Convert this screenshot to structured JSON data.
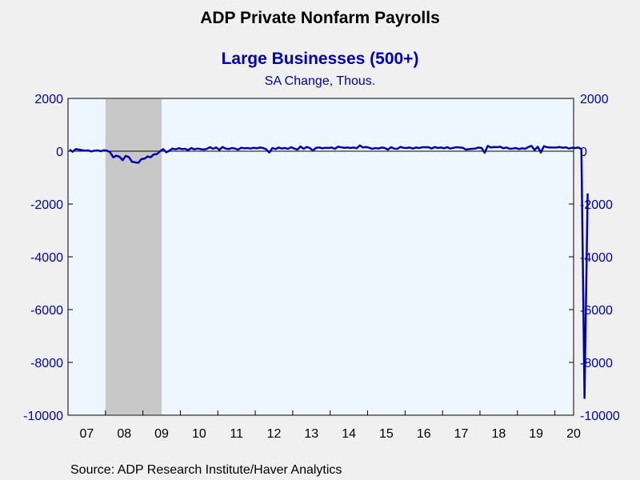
{
  "chart_data": {
    "type": "line",
    "title": "ADP Private Nonfarm Payrolls",
    "subtitle": "Large Businesses (500+)",
    "units": "SA Change, Thous.",
    "source": "Source:  ADP Research Institute/Haver Analytics",
    "x_ticks": [
      "07",
      "08",
      "09",
      "10",
      "11",
      "12",
      "13",
      "14",
      "15",
      "16",
      "17",
      "18",
      "19",
      "20"
    ],
    "ylim": [
      -10000,
      2000
    ],
    "y_ticks": [
      "2000",
      "0",
      "-2000",
      "-4000",
      "-6000",
      "-8000",
      "-10000"
    ],
    "grid": false,
    "recession": {
      "start": "2008-01",
      "end": "2009-06"
    },
    "colors": {
      "line": "#0000b4",
      "plot_bg": "#eef6ff",
      "page_bg": "#f0f0f0",
      "recession": "#c8c8c8",
      "text_accent": "#0000b4"
    },
    "series": [
      {
        "start": "2007-01",
        "frequency": "monthly",
        "values": [
          60,
          -20,
          80,
          60,
          40,
          20,
          30,
          -10,
          20,
          30,
          0,
          40,
          20,
          -40,
          -230,
          -170,
          -210,
          -340,
          -180,
          -220,
          -400,
          -420,
          -440,
          -300,
          -280,
          -200,
          -230,
          -120,
          -110,
          0,
          80,
          -40,
          20,
          100,
          70,
          110,
          80,
          90,
          40,
          120,
          70,
          100,
          80,
          60,
          90,
          150,
          90,
          140,
          50,
          160,
          100,
          80,
          120,
          100,
          60,
          130,
          110,
          120,
          100,
          130,
          110,
          140,
          120,
          70,
          -50,
          120,
          80,
          140,
          100,
          120,
          90,
          150,
          100,
          60,
          180,
          90,
          160,
          120,
          20,
          130,
          140,
          110,
          130,
          120,
          140,
          90,
          170,
          150,
          130,
          140,
          120,
          140,
          110,
          220,
          140,
          160,
          130,
          90,
          120,
          100,
          140,
          120,
          60,
          150,
          100,
          90,
          160,
          130,
          120,
          140,
          100,
          140,
          120,
          150,
          150,
          150,
          100,
          160,
          120,
          140,
          110,
          150,
          100,
          130,
          150,
          140,
          130,
          60,
          80,
          90,
          100,
          140,
          120,
          -60,
          200,
          140,
          160,
          150,
          170,
          110,
          140,
          90,
          100,
          120,
          80,
          110,
          90,
          160,
          200,
          40,
          170,
          -50,
          190,
          150,
          140,
          140,
          140,
          160,
          130,
          150,
          100,
          130,
          120,
          140,
          80,
          -9350,
          -1600
        ]
      }
    ]
  }
}
